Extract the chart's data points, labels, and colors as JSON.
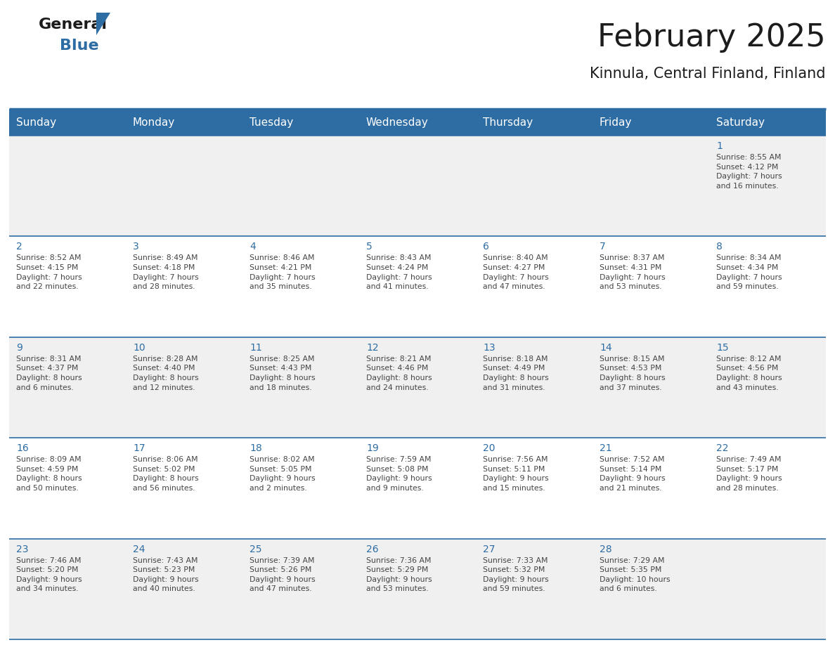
{
  "title": "February 2025",
  "subtitle": "Kinnula, Central Finland, Finland",
  "header_bg": "#2E6DA4",
  "header_text_color": "#FFFFFF",
  "cell_bg_row0": "#F0F0F0",
  "cell_bg_row1": "#FFFFFF",
  "cell_bg_row2": "#F0F0F0",
  "cell_bg_row3": "#FFFFFF",
  "cell_bg_row4": "#F0F0F0",
  "day_number_color": "#2E6DA4",
  "text_color": "#444444",
  "line_color": "#2E6DA4",
  "days_of_week": [
    "Sunday",
    "Monday",
    "Tuesday",
    "Wednesday",
    "Thursday",
    "Friday",
    "Saturday"
  ],
  "weeks": [
    [
      {
        "day": null,
        "info": null
      },
      {
        "day": null,
        "info": null
      },
      {
        "day": null,
        "info": null
      },
      {
        "day": null,
        "info": null
      },
      {
        "day": null,
        "info": null
      },
      {
        "day": null,
        "info": null
      },
      {
        "day": 1,
        "info": "Sunrise: 8:55 AM\nSunset: 4:12 PM\nDaylight: 7 hours\nand 16 minutes."
      }
    ],
    [
      {
        "day": 2,
        "info": "Sunrise: 8:52 AM\nSunset: 4:15 PM\nDaylight: 7 hours\nand 22 minutes."
      },
      {
        "day": 3,
        "info": "Sunrise: 8:49 AM\nSunset: 4:18 PM\nDaylight: 7 hours\nand 28 minutes."
      },
      {
        "day": 4,
        "info": "Sunrise: 8:46 AM\nSunset: 4:21 PM\nDaylight: 7 hours\nand 35 minutes."
      },
      {
        "day": 5,
        "info": "Sunrise: 8:43 AM\nSunset: 4:24 PM\nDaylight: 7 hours\nand 41 minutes."
      },
      {
        "day": 6,
        "info": "Sunrise: 8:40 AM\nSunset: 4:27 PM\nDaylight: 7 hours\nand 47 minutes."
      },
      {
        "day": 7,
        "info": "Sunrise: 8:37 AM\nSunset: 4:31 PM\nDaylight: 7 hours\nand 53 minutes."
      },
      {
        "day": 8,
        "info": "Sunrise: 8:34 AM\nSunset: 4:34 PM\nDaylight: 7 hours\nand 59 minutes."
      }
    ],
    [
      {
        "day": 9,
        "info": "Sunrise: 8:31 AM\nSunset: 4:37 PM\nDaylight: 8 hours\nand 6 minutes."
      },
      {
        "day": 10,
        "info": "Sunrise: 8:28 AM\nSunset: 4:40 PM\nDaylight: 8 hours\nand 12 minutes."
      },
      {
        "day": 11,
        "info": "Sunrise: 8:25 AM\nSunset: 4:43 PM\nDaylight: 8 hours\nand 18 minutes."
      },
      {
        "day": 12,
        "info": "Sunrise: 8:21 AM\nSunset: 4:46 PM\nDaylight: 8 hours\nand 24 minutes."
      },
      {
        "day": 13,
        "info": "Sunrise: 8:18 AM\nSunset: 4:49 PM\nDaylight: 8 hours\nand 31 minutes."
      },
      {
        "day": 14,
        "info": "Sunrise: 8:15 AM\nSunset: 4:53 PM\nDaylight: 8 hours\nand 37 minutes."
      },
      {
        "day": 15,
        "info": "Sunrise: 8:12 AM\nSunset: 4:56 PM\nDaylight: 8 hours\nand 43 minutes."
      }
    ],
    [
      {
        "day": 16,
        "info": "Sunrise: 8:09 AM\nSunset: 4:59 PM\nDaylight: 8 hours\nand 50 minutes."
      },
      {
        "day": 17,
        "info": "Sunrise: 8:06 AM\nSunset: 5:02 PM\nDaylight: 8 hours\nand 56 minutes."
      },
      {
        "day": 18,
        "info": "Sunrise: 8:02 AM\nSunset: 5:05 PM\nDaylight: 9 hours\nand 2 minutes."
      },
      {
        "day": 19,
        "info": "Sunrise: 7:59 AM\nSunset: 5:08 PM\nDaylight: 9 hours\nand 9 minutes."
      },
      {
        "day": 20,
        "info": "Sunrise: 7:56 AM\nSunset: 5:11 PM\nDaylight: 9 hours\nand 15 minutes."
      },
      {
        "day": 21,
        "info": "Sunrise: 7:52 AM\nSunset: 5:14 PM\nDaylight: 9 hours\nand 21 minutes."
      },
      {
        "day": 22,
        "info": "Sunrise: 7:49 AM\nSunset: 5:17 PM\nDaylight: 9 hours\nand 28 minutes."
      }
    ],
    [
      {
        "day": 23,
        "info": "Sunrise: 7:46 AM\nSunset: 5:20 PM\nDaylight: 9 hours\nand 34 minutes."
      },
      {
        "day": 24,
        "info": "Sunrise: 7:43 AM\nSunset: 5:23 PM\nDaylight: 9 hours\nand 40 minutes."
      },
      {
        "day": 25,
        "info": "Sunrise: 7:39 AM\nSunset: 5:26 PM\nDaylight: 9 hours\nand 47 minutes."
      },
      {
        "day": 26,
        "info": "Sunrise: 7:36 AM\nSunset: 5:29 PM\nDaylight: 9 hours\nand 53 minutes."
      },
      {
        "day": 27,
        "info": "Sunrise: 7:33 AM\nSunset: 5:32 PM\nDaylight: 9 hours\nand 59 minutes."
      },
      {
        "day": 28,
        "info": "Sunrise: 7:29 AM\nSunset: 5:35 PM\nDaylight: 10 hours\nand 6 minutes."
      },
      {
        "day": null,
        "info": null
      }
    ]
  ],
  "header_font_size": 11,
  "day_num_font_size": 10,
  "info_font_size": 7.8,
  "title_font_size": 32,
  "subtitle_font_size": 15,
  "logo_general_size": 16,
  "logo_blue_size": 16
}
